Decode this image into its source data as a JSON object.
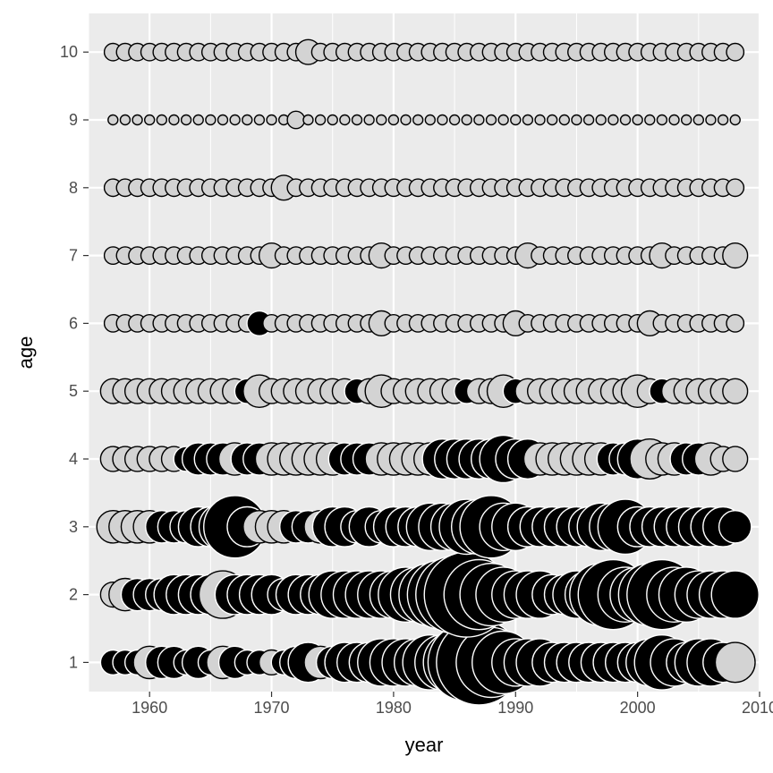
{
  "chart_data": {
    "type": "scatter",
    "title": "",
    "xlabel": "year",
    "ylabel": "age",
    "xlim": [
      1955,
      2010
    ],
    "ylim": [
      0.57,
      10.57
    ],
    "x_ticks": [
      1960,
      1970,
      1980,
      1990,
      2000,
      2010
    ],
    "y_ticks": [
      1,
      2,
      3,
      4,
      5,
      6,
      7,
      8,
      9,
      10
    ],
    "x_start": 1957,
    "x_end": 2008,
    "encoding": "point size = magnitude (area); fill black = large value, light grey = small value",
    "rows": [
      {
        "age": 1,
        "sizes": [
          3,
          3,
          3,
          4,
          4,
          4,
          3,
          4,
          3,
          4,
          4,
          3,
          3,
          3,
          3,
          4,
          5,
          4,
          4,
          5,
          5,
          5,
          6,
          6,
          6,
          6,
          7,
          7,
          8,
          10,
          11,
          9,
          8,
          6,
          6,
          6,
          5,
          5,
          5,
          5,
          5,
          5,
          5,
          5,
          6,
          7,
          6,
          5,
          6,
          6,
          5,
          5
        ],
        "black_from": [
          10,
          13,
          21,
          23
        ],
        "fills": "bbbwbbbbbwbbbwbbbwbbbbbbbbbbbbbbbbbbbbbbbbbbbbbbbbb"
      },
      {
        "age": 2,
        "sizes": [
          3,
          4,
          4,
          4,
          4,
          5,
          5,
          5,
          5,
          6,
          5,
          5,
          5,
          5,
          4,
          5,
          5,
          5,
          6,
          6,
          6,
          6,
          6,
          6,
          7,
          7,
          8,
          9,
          10,
          11,
          9,
          8,
          7,
          6,
          6,
          6,
          5,
          5,
          6,
          6,
          8,
          9,
          7,
          7,
          8,
          9,
          7,
          7,
          6,
          6,
          6,
          6
        ],
        "fills": "wwbbbbbbbwbbbbbbbbbbbbbbbbbbbbbbbbbbbbbbbbbbbbbbbbbb"
      },
      {
        "age": 3,
        "sizes": [
          4,
          4,
          4,
          4,
          4,
          4,
          4,
          5,
          5,
          6,
          8,
          5,
          4,
          4,
          4,
          4,
          4,
          4,
          5,
          5,
          4,
          5,
          4,
          5,
          5,
          5,
          6,
          6,
          6,
          7,
          7,
          8,
          6,
          6,
          5,
          5,
          5,
          5,
          5,
          5,
          6,
          6,
          7,
          5,
          5,
          5,
          5,
          5,
          5,
          5,
          5,
          4
        ],
        "fills": "wwwwbbbbbbbbwwwbbwbbbbbbbbbbbbbbbbbbbbbbbbbbbbbbbbbbw"
      },
      {
        "age": 4,
        "sizes": [
          3,
          3,
          3,
          3,
          3,
          3,
          3,
          4,
          4,
          4,
          4,
          4,
          4,
          4,
          4,
          4,
          4,
          4,
          4,
          4,
          4,
          4,
          4,
          4,
          4,
          4,
          4,
          5,
          5,
          5,
          5,
          5,
          6,
          5,
          5,
          4,
          4,
          4,
          4,
          4,
          4,
          4,
          4,
          5,
          5,
          4,
          4,
          4,
          4,
          4,
          3,
          3
        ],
        "fills": "wwwwwwbbbbwbbwwwwwwbbbwwwwwbbbbbbbbwwwwwwbbbwwwbbwww"
      },
      {
        "age": 5,
        "sizes": [
          3,
          3,
          3,
          3,
          3,
          3,
          3,
          3,
          3,
          3,
          3,
          3,
          4,
          3,
          3,
          3,
          3,
          3,
          3,
          3,
          3,
          3,
          4,
          3,
          3,
          3,
          3,
          3,
          3,
          3,
          3,
          3,
          4,
          3,
          3,
          3,
          3,
          3,
          3,
          3,
          3,
          3,
          3,
          4,
          3,
          3,
          3,
          3,
          3,
          3,
          3,
          3
        ],
        "fills": "wwwwwwwwwwwbwwwwwwwwbwwwwwwwwbwwwbwwwwwwwwwwwbwwwwwww"
      },
      {
        "age": 6,
        "sizes": [
          2,
          2,
          2,
          2,
          2,
          2,
          2,
          2,
          2,
          2,
          2,
          2,
          3,
          2,
          2,
          2,
          2,
          2,
          2,
          2,
          2,
          2,
          3,
          2,
          2,
          2,
          2,
          2,
          2,
          2,
          2,
          2,
          2,
          3,
          2,
          2,
          2,
          2,
          2,
          2,
          2,
          2,
          2,
          2,
          3,
          2,
          2,
          2,
          2,
          2,
          2,
          2
        ],
        "fills": "wwwwwwwwwwwwbwwwwwwwwwwwwwwwwwwwwwwwwwwwwwwwwwwwwwww"
      },
      {
        "age": 7,
        "sizes": [
          2,
          2,
          2,
          2,
          2,
          2,
          2,
          2,
          2,
          2,
          2,
          2,
          2,
          3,
          2,
          2,
          2,
          2,
          2,
          2,
          2,
          2,
          3,
          2,
          2,
          2,
          2,
          2,
          2,
          2,
          2,
          2,
          2,
          2,
          3,
          2,
          2,
          2,
          2,
          2,
          2,
          2,
          2,
          2,
          2,
          3,
          2,
          2,
          2,
          2,
          2,
          3
        ],
        "fills": "wwwwwwwwwwwwwwwwwwwwwwwwwwwwwwwwwwwwwwwwwwwwwwwwwwww"
      },
      {
        "age": 8,
        "sizes": [
          2,
          2,
          2,
          2,
          2,
          2,
          2,
          2,
          2,
          2,
          2,
          2,
          2,
          2,
          3,
          2,
          2,
          2,
          2,
          2,
          2,
          2,
          2,
          2,
          2,
          2,
          2,
          2,
          2,
          2,
          2,
          2,
          2,
          2,
          2,
          2,
          2,
          2,
          2,
          2,
          2,
          2,
          2,
          2,
          2,
          2,
          2,
          2,
          2,
          2,
          2,
          2
        ],
        "fills": "wwwwwwwwwwwwwwwwwwwwwwwwwwwwwwwwwwwwwwwwwwwwwwwwwwww"
      },
      {
        "age": 9,
        "sizes": [
          1,
          1,
          1,
          1,
          1,
          1,
          1,
          1,
          1,
          1,
          1,
          1,
          1,
          1,
          1,
          2,
          1,
          1,
          1,
          1,
          1,
          1,
          1,
          1,
          1,
          1,
          1,
          1,
          1,
          1,
          1,
          1,
          1,
          1,
          1,
          1,
          1,
          1,
          1,
          1,
          1,
          1,
          1,
          1,
          1,
          1,
          1,
          1,
          1,
          1,
          1,
          1
        ],
        "fills": "wwwwwwwwwwwwwwwwwwwwwwwwwwwwwwwwwwwwwwwwwwwwwwwwwwww"
      },
      {
        "age": 10,
        "sizes": [
          2,
          2,
          2,
          2,
          2,
          2,
          2,
          2,
          2,
          2,
          2,
          2,
          2,
          2,
          2,
          2,
          3,
          2,
          2,
          2,
          2,
          2,
          2,
          2,
          2,
          2,
          2,
          2,
          2,
          2,
          2,
          2,
          2,
          2,
          2,
          2,
          2,
          2,
          2,
          2,
          2,
          2,
          2,
          2,
          2,
          2,
          2,
          2,
          2,
          2,
          2,
          2
        ],
        "fills": "wwwwwwwwwwwwwwwwwwwwwwwwwwwwwwwwwwwwwwwwwwwwwwwwwwww"
      }
    ],
    "grid": true
  }
}
